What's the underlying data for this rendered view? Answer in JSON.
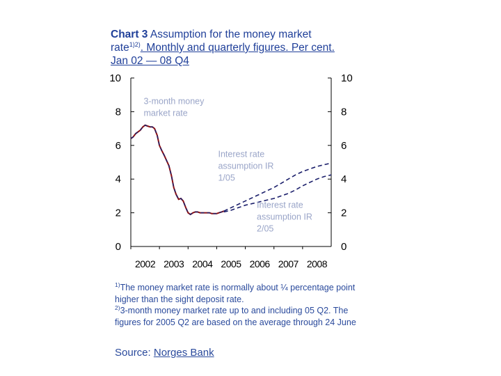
{
  "title": {
    "lead": "Chart 3",
    "text": " Assumption for the money market rate",
    "sup": "1)2)",
    "rest": ". Monthly and quarterly figures. Per cent. Jan 02 — 08 Q4"
  },
  "footnotes": [
    {
      "sup": "1)",
      "text": "The money market rate is normally about ¼ percentage point higher than the sight deposit rate."
    },
    {
      "sup": "2)",
      "text": "3-month money market rate up to and including 05 Q2. The figures for 2005 Q2 are based on the average through 24 June"
    }
  ],
  "source": {
    "label": "Source:",
    "name": "Norges Bank"
  },
  "colors": {
    "series": "#8b0f14",
    "dashed": "#1b1f6b",
    "annotation": "#9aa5c8",
    "axis": "#000000"
  },
  "chart_data": {
    "type": "line",
    "ylim": [
      0,
      10
    ],
    "yticks": [
      0,
      2,
      4,
      6,
      8,
      10
    ],
    "xlim": [
      2002.0,
      2009.0
    ],
    "xtick_labels": [
      "2002",
      "2003",
      "2004",
      "2005",
      "2006",
      "2007",
      "2008"
    ],
    "grid": false,
    "annotations": [
      {
        "text": "3-month money market rate",
        "x": 2002.45,
        "y": 8.45
      },
      {
        "text": "Interest rate assumption IR 1/05",
        "x": 2005.05,
        "y": 5.3
      },
      {
        "text": "Interest rate assumption IR 2/05",
        "x": 2006.4,
        "y": 2.3
      }
    ],
    "series": [
      {
        "name": "3-month money market rate",
        "style": "solid",
        "x": [
          2002.0,
          2002.08,
          2002.17,
          2002.25,
          2002.33,
          2002.42,
          2002.5,
          2002.58,
          2002.67,
          2002.75,
          2002.83,
          2002.92,
          2003.0,
          2003.08,
          2003.17,
          2003.25,
          2003.33,
          2003.42,
          2003.5,
          2003.58,
          2003.67,
          2003.75,
          2003.83,
          2003.92,
          2004.0,
          2004.08,
          2004.17,
          2004.25,
          2004.33,
          2004.42,
          2004.5,
          2004.58,
          2004.67,
          2004.75,
          2004.83,
          2004.92,
          2005.0,
          2005.08,
          2005.17,
          2005.25
        ],
        "values": [
          6.4,
          6.5,
          6.7,
          6.8,
          6.9,
          7.1,
          7.2,
          7.15,
          7.1,
          7.1,
          7.0,
          6.6,
          6.0,
          5.7,
          5.4,
          5.1,
          4.8,
          4.2,
          3.5,
          3.1,
          2.8,
          2.85,
          2.7,
          2.3,
          2.0,
          1.9,
          2.0,
          2.05,
          2.05,
          2.0,
          2.0,
          2.0,
          2.0,
          2.0,
          1.95,
          1.95,
          1.95,
          2.0,
          2.05,
          2.1
        ]
      },
      {
        "name": "Interest rate assumption IR 1/05",
        "style": "dashed",
        "x": [
          2005.25,
          2005.5,
          2005.75,
          2006.0,
          2006.25,
          2006.5,
          2006.75,
          2007.0,
          2007.25,
          2007.5,
          2007.75,
          2008.0,
          2008.25,
          2008.5,
          2008.75,
          2009.0
        ],
        "values": [
          2.1,
          2.3,
          2.5,
          2.7,
          2.9,
          3.1,
          3.3,
          3.5,
          3.75,
          4.0,
          4.25,
          4.45,
          4.6,
          4.75,
          4.85,
          4.95
        ]
      },
      {
        "name": "Interest rate assumption IR 2/05",
        "style": "dashed",
        "x": [
          2005.25,
          2005.5,
          2005.75,
          2006.0,
          2006.25,
          2006.5,
          2006.75,
          2007.0,
          2007.25,
          2007.5,
          2007.75,
          2008.0,
          2008.25,
          2008.5,
          2008.75,
          2009.0
        ],
        "values": [
          2.05,
          2.15,
          2.3,
          2.45,
          2.55,
          2.65,
          2.75,
          2.85,
          3.0,
          3.15,
          3.35,
          3.6,
          3.8,
          4.0,
          4.15,
          4.25
        ]
      }
    ]
  }
}
